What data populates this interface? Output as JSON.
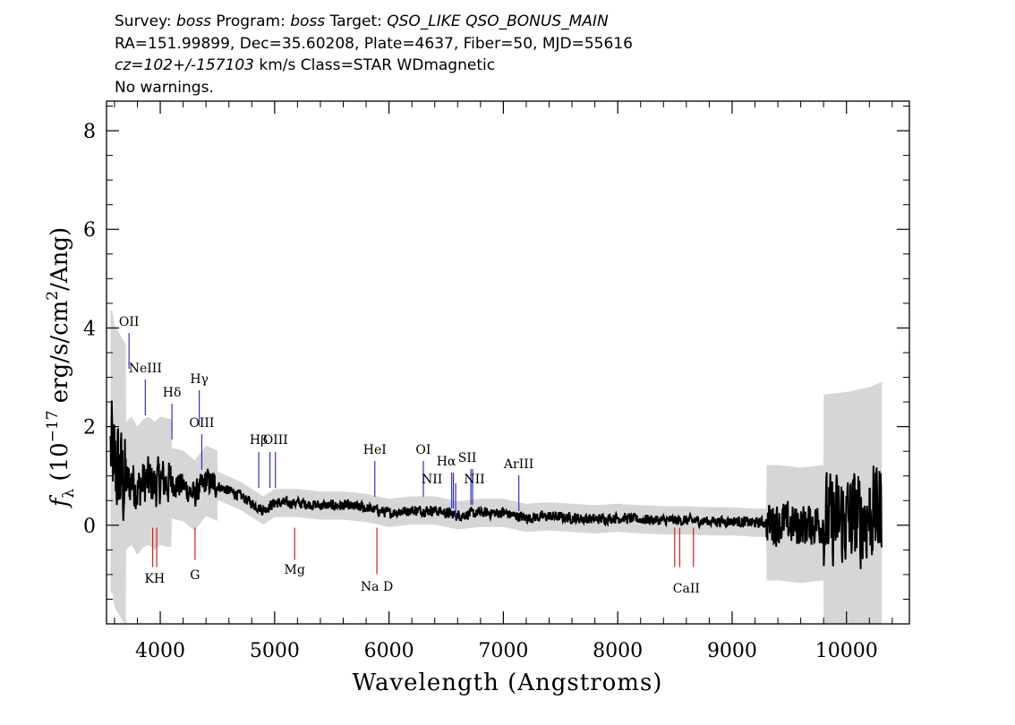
{
  "header": {
    "line1": {
      "survey_label": "Survey: ",
      "survey": "boss",
      "program_label": " Program: ",
      "program": "boss",
      "target_label": " Target: ",
      "target": "QSO_LIKE QSO_BONUS_MAIN"
    },
    "line2": "RA=151.99899, Dec=35.60208, Plate=4637, Fiber=50, MJD=55616",
    "line3": {
      "z": "cz=102+/-157103",
      "rest": " km/s Class=STAR WDmagnetic"
    },
    "line4": "No warnings."
  },
  "colors": {
    "emission": "#3030d0",
    "absorption": "#d02020",
    "spectrum": "#000000",
    "error": "#c8c8c8"
  },
  "chart_data": {
    "type": "line",
    "xlabel": "Wavelength (Angstroms)",
    "ylabel": "f_λ (10^-17 erg/s/cm^2/Ang)",
    "xlim": [
      3530,
      10550
    ],
    "ylim": [
      -2.0,
      8.6
    ],
    "x_ticks": [
      4000,
      5000,
      6000,
      7000,
      8000,
      9000,
      10000
    ],
    "y_ticks": [
      0,
      2,
      4,
      6,
      8
    ],
    "series": [
      {
        "x": [
          3580,
          3600,
          3650,
          3700,
          3750,
          3800,
          3850,
          3900,
          3950,
          4000,
          4100,
          4200,
          4300,
          4400,
          4500,
          4600,
          4700,
          4800,
          4900,
          5000,
          5200,
          5400,
          5600,
          5800,
          6000,
          6200,
          6400,
          6600,
          6800,
          7000,
          7200,
          7400,
          7600,
          7800,
          8000,
          8200,
          8400,
          8600,
          8800,
          9000,
          9200,
          9400,
          9600,
          9800,
          10000,
          10100,
          10200,
          10300
        ],
        "y": [
          1.5,
          1.2,
          1.0,
          0.8,
          0.9,
          0.7,
          0.85,
          0.9,
          0.8,
          0.9,
          0.85,
          0.8,
          0.6,
          0.9,
          0.8,
          0.7,
          0.6,
          0.45,
          0.3,
          0.45,
          0.45,
          0.4,
          0.4,
          0.35,
          0.25,
          0.3,
          0.3,
          0.2,
          0.25,
          0.25,
          0.15,
          0.18,
          0.15,
          0.12,
          0.15,
          0.12,
          0.1,
          0.1,
          0.08,
          0.08,
          0.05,
          0.05,
          0.0,
          0.05,
          0.1,
          0.15,
          0.2,
          0.3
        ]
      }
    ],
    "emission_lines": [
      {
        "label": "OII",
        "wave": 3727
      },
      {
        "label": "NeIII",
        "wave": 3869
      },
      {
        "label": "Hδ",
        "wave": 4102
      },
      {
        "label": "Hγ",
        "wave": 4341
      },
      {
        "label": "OIII",
        "wave": 4363
      },
      {
        "label": "Hβ",
        "wave": 4861
      },
      {
        "label": "OIII",
        "wave": 4959
      },
      {
        "label": "OIII",
        "wave": 5007
      },
      {
        "label": "HeI",
        "wave": 5876
      },
      {
        "label": "OI",
        "wave": 6300
      },
      {
        "label": "NII",
        "wave": 6548
      },
      {
        "label": "Hα",
        "wave": 6563
      },
      {
        "label": "NII",
        "wave": 6583
      },
      {
        "label": "SII",
        "wave": 6716
      },
      {
        "label": "SII",
        "wave": 6731
      },
      {
        "label": "ArIII",
        "wave": 7135
      }
    ],
    "absorption_lines": [
      {
        "label": "KH",
        "wave": 3934
      },
      {
        "label": "KH",
        "wave": 3969
      },
      {
        "label": "G",
        "wave": 4304
      },
      {
        "label": "Mg",
        "wave": 5175
      },
      {
        "label": "Na D",
        "wave": 5894
      },
      {
        "label": "CaII",
        "wave": 8498
      },
      {
        "label": "CaII",
        "wave": 8542
      },
      {
        "label": "CaII",
        "wave": 8662
      }
    ]
  }
}
